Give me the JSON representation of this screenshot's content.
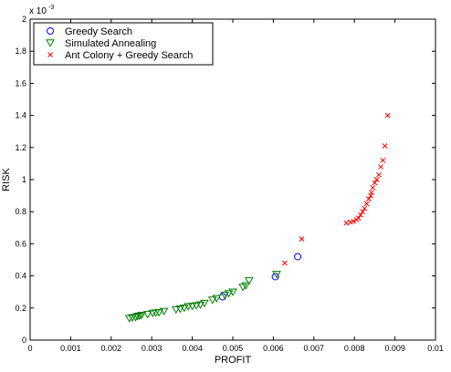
{
  "chart_data": {
    "type": "scatter",
    "xlabel": "PROFIT",
    "ylabel": "RISK",
    "y_multiplier_label": "x 10",
    "y_multiplier_exponent": "-3",
    "xlim": [
      0,
      0.01
    ],
    "ylim": [
      0,
      0.002
    ],
    "x_ticks": [
      {
        "value": 0,
        "label": "0"
      },
      {
        "value": 0.001,
        "label": "0.001"
      },
      {
        "value": 0.002,
        "label": "0.002"
      },
      {
        "value": 0.003,
        "label": "0.003"
      },
      {
        "value": 0.004,
        "label": "0.004"
      },
      {
        "value": 0.005,
        "label": "0.005"
      },
      {
        "value": 0.006,
        "label": "0.006"
      },
      {
        "value": 0.007,
        "label": "0.007"
      },
      {
        "value": 0.008,
        "label": "0.008"
      },
      {
        "value": 0.009,
        "label": "0.009"
      },
      {
        "value": 0.01,
        "label": "0.01"
      }
    ],
    "y_ticks": [
      {
        "value": 0,
        "label": "0"
      },
      {
        "value": 0.0002,
        "label": "0.2"
      },
      {
        "value": 0.0004,
        "label": "0.4"
      },
      {
        "value": 0.0006,
        "label": "0.6"
      },
      {
        "value": 0.0008,
        "label": "0.8"
      },
      {
        "value": 0.001,
        "label": "1"
      },
      {
        "value": 0.0012,
        "label": "1.2"
      },
      {
        "value": 0.0014,
        "label": "1.4"
      },
      {
        "value": 0.0016,
        "label": "1.6"
      },
      {
        "value": 0.0018,
        "label": "1.8"
      },
      {
        "value": 0.002,
        "label": "2"
      }
    ],
    "grid": false,
    "legend_position": "top-left",
    "series": [
      {
        "name": "Greedy Search",
        "marker": "circle",
        "color": "#0000ff",
        "points": [
          {
            "x": 0.00475,
            "y": 0.00027
          },
          {
            "x": 0.00605,
            "y": 0.000395
          },
          {
            "x": 0.0066,
            "y": 0.00052
          }
        ]
      },
      {
        "name": "Simulated Annealing",
        "marker": "triangle-down",
        "color": "#008000",
        "points": [
          {
            "x": 0.00245,
            "y": 0.000135
          },
          {
            "x": 0.00252,
            "y": 0.00014
          },
          {
            "x": 0.0026,
            "y": 0.000142
          },
          {
            "x": 0.00265,
            "y": 0.000148
          },
          {
            "x": 0.0027,
            "y": 0.00015
          },
          {
            "x": 0.00275,
            "y": 0.000155
          },
          {
            "x": 0.0029,
            "y": 0.00016
          },
          {
            "x": 0.00302,
            "y": 0.000168
          },
          {
            "x": 0.0031,
            "y": 0.00017
          },
          {
            "x": 0.00318,
            "y": 0.000172
          },
          {
            "x": 0.0033,
            "y": 0.00018
          },
          {
            "x": 0.0036,
            "y": 0.00019
          },
          {
            "x": 0.0037,
            "y": 0.000195
          },
          {
            "x": 0.0038,
            "y": 0.0002
          },
          {
            "x": 0.0039,
            "y": 0.00021
          },
          {
            "x": 0.004,
            "y": 0.000212
          },
          {
            "x": 0.0041,
            "y": 0.000215
          },
          {
            "x": 0.0042,
            "y": 0.00022
          },
          {
            "x": 0.0043,
            "y": 0.00023
          },
          {
            "x": 0.0045,
            "y": 0.00025
          },
          {
            "x": 0.0046,
            "y": 0.00026
          },
          {
            "x": 0.0048,
            "y": 0.00028
          },
          {
            "x": 0.0049,
            "y": 0.00029
          },
          {
            "x": 0.005,
            "y": 0.0003
          },
          {
            "x": 0.00525,
            "y": 0.00033
          },
          {
            "x": 0.00532,
            "y": 0.00034
          },
          {
            "x": 0.0054,
            "y": 0.00037
          },
          {
            "x": 0.00608,
            "y": 0.00041
          }
        ]
      },
      {
        "name": "Ant Colony + Greedy Search",
        "marker": "x",
        "color": "#ff0000",
        "points": [
          {
            "x": 0.00628,
            "y": 0.00048
          },
          {
            "x": 0.0067,
            "y": 0.00063
          },
          {
            "x": 0.0078,
            "y": 0.00073
          },
          {
            "x": 0.0079,
            "y": 0.000735
          },
          {
            "x": 0.00798,
            "y": 0.00074
          },
          {
            "x": 0.00805,
            "y": 0.00075
          },
          {
            "x": 0.0081,
            "y": 0.00076
          },
          {
            "x": 0.00815,
            "y": 0.00078
          },
          {
            "x": 0.0082,
            "y": 0.0008
          },
          {
            "x": 0.00825,
            "y": 0.00082
          },
          {
            "x": 0.0083,
            "y": 0.00085
          },
          {
            "x": 0.00835,
            "y": 0.00088
          },
          {
            "x": 0.0084,
            "y": 0.0009
          },
          {
            "x": 0.00842,
            "y": 0.00092
          },
          {
            "x": 0.00845,
            "y": 0.00095
          },
          {
            "x": 0.0085,
            "y": 0.00098
          },
          {
            "x": 0.00855,
            "y": 0.001
          },
          {
            "x": 0.0086,
            "y": 0.00103
          },
          {
            "x": 0.00865,
            "y": 0.00108
          },
          {
            "x": 0.0087,
            "y": 0.00112
          },
          {
            "x": 0.00875,
            "y": 0.00121
          },
          {
            "x": 0.00882,
            "y": 0.0014
          }
        ]
      }
    ]
  }
}
